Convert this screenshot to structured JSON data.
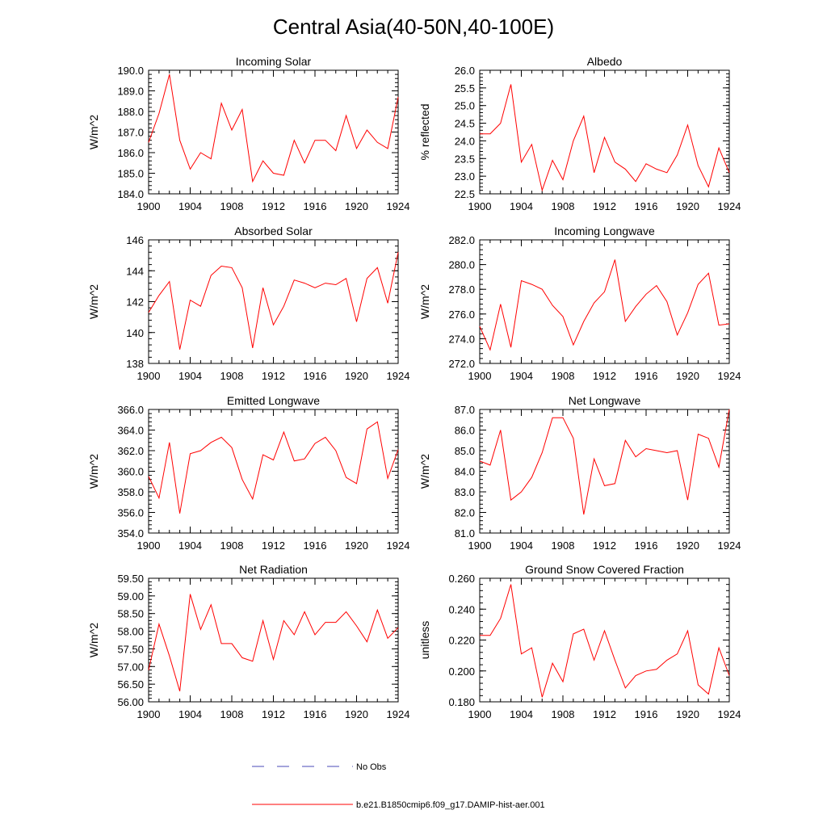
{
  "page": {
    "title": "Central Asia(40-50N,40-100E)"
  },
  "legend": {
    "entries": [
      {
        "label": "No Obs",
        "color": "#4a4ab8",
        "style": "dashed"
      },
      {
        "label": "b.e21.B1850cmip6.f09_g17.DAMIP-hist-aer.001",
        "color": "#ff0000",
        "style": "solid"
      }
    ]
  },
  "chart_data": [
    {
      "type": "line",
      "title": "Incoming Solar",
      "ylabel": "W/m^2",
      "xlim": [
        1900,
        1924
      ],
      "ylim": [
        184.0,
        190.0
      ],
      "xticks": [
        1900,
        1904,
        1908,
        1912,
        1916,
        1920,
        1924
      ],
      "yticks": [
        "184.0",
        "185.0",
        "186.0",
        "187.0",
        "188.0",
        "189.0",
        "190.0"
      ],
      "yminor": 0.2,
      "x": [
        1900,
        1901,
        1902,
        1903,
        1904,
        1905,
        1906,
        1907,
        1908,
        1909,
        1910,
        1911,
        1912,
        1913,
        1914,
        1915,
        1916,
        1917,
        1918,
        1919,
        1920,
        1921,
        1922,
        1923,
        1924
      ],
      "series": [
        {
          "color": "#ff0000",
          "values": [
            186.5,
            187.9,
            189.8,
            186.6,
            185.2,
            186.0,
            185.7,
            188.4,
            187.1,
            188.1,
            184.6,
            185.6,
            185.0,
            184.9,
            186.6,
            185.5,
            186.6,
            186.6,
            186.1,
            187.8,
            186.2,
            187.1,
            186.5,
            186.2,
            188.7
          ]
        }
      ]
    },
    {
      "type": "line",
      "title": "Albedo",
      "ylabel": "% reflected",
      "xlim": [
        1900,
        1924
      ],
      "ylim": [
        22.5,
        26.0
      ],
      "xticks": [
        1900,
        1904,
        1908,
        1912,
        1916,
        1920,
        1924
      ],
      "yticks": [
        "22.5",
        "23.0",
        "23.5",
        "24.0",
        "24.5",
        "25.0",
        "25.5",
        "26.0"
      ],
      "yminor": 0.1,
      "x": [
        1900,
        1901,
        1902,
        1903,
        1904,
        1905,
        1906,
        1907,
        1908,
        1909,
        1910,
        1911,
        1912,
        1913,
        1914,
        1915,
        1916,
        1917,
        1918,
        1919,
        1920,
        1921,
        1922,
        1923,
        1924
      ],
      "series": [
        {
          "color": "#ff0000",
          "values": [
            24.2,
            24.2,
            24.5,
            25.6,
            23.4,
            23.9,
            22.6,
            23.45,
            22.9,
            24.0,
            24.7,
            23.1,
            24.1,
            23.4,
            23.2,
            22.85,
            23.35,
            23.2,
            23.1,
            23.6,
            24.45,
            23.3,
            22.7,
            23.8,
            23.1
          ]
        }
      ]
    },
    {
      "type": "line",
      "title": "Absorbed Solar",
      "ylabel": "W/m^2",
      "xlim": [
        1900,
        1924
      ],
      "ylim": [
        138,
        146
      ],
      "xticks": [
        1900,
        1904,
        1908,
        1912,
        1916,
        1920,
        1924
      ],
      "yticks": [
        "138",
        "140",
        "142",
        "144",
        "146"
      ],
      "yminor": 0.4,
      "x": [
        1900,
        1901,
        1902,
        1903,
        1904,
        1905,
        1906,
        1907,
        1908,
        1909,
        1910,
        1911,
        1912,
        1913,
        1914,
        1915,
        1916,
        1917,
        1918,
        1919,
        1920,
        1921,
        1922,
        1923,
        1924
      ],
      "series": [
        {
          "color": "#ff0000",
          "values": [
            141.3,
            142.4,
            143.3,
            138.9,
            142.1,
            141.7,
            143.7,
            144.3,
            144.2,
            142.9,
            139.0,
            142.9,
            140.5,
            141.7,
            143.4,
            143.2,
            142.9,
            143.2,
            143.1,
            143.5,
            140.7,
            143.5,
            144.2,
            141.9,
            145.2
          ]
        }
      ]
    },
    {
      "type": "line",
      "title": "Incoming Longwave",
      "ylabel": "W/m^2",
      "xlim": [
        1900,
        1924
      ],
      "ylim": [
        272.0,
        282.0
      ],
      "xticks": [
        1900,
        1904,
        1908,
        1912,
        1916,
        1920,
        1924
      ],
      "yticks": [
        "272.0",
        "274.0",
        "276.0",
        "278.0",
        "280.0",
        "282.0"
      ],
      "yminor": 0.4,
      "x": [
        1900,
        1901,
        1902,
        1903,
        1904,
        1905,
        1906,
        1907,
        1908,
        1909,
        1910,
        1911,
        1912,
        1913,
        1914,
        1915,
        1916,
        1917,
        1918,
        1919,
        1920,
        1921,
        1922,
        1923,
        1924
      ],
      "series": [
        {
          "color": "#ff0000",
          "values": [
            275.0,
            273.1,
            276.8,
            273.3,
            278.7,
            278.4,
            278.0,
            276.7,
            275.8,
            273.5,
            275.4,
            276.9,
            277.8,
            280.4,
            275.4,
            276.6,
            277.6,
            278.3,
            277.0,
            274.3,
            276.1,
            278.4,
            279.3,
            275.1,
            275.2
          ]
        }
      ]
    },
    {
      "type": "line",
      "title": "Emitted Longwave",
      "ylabel": "W/m^2",
      "xlim": [
        1900,
        1924
      ],
      "ylim": [
        354.0,
        366.0
      ],
      "xticks": [
        1900,
        1904,
        1908,
        1912,
        1916,
        1920,
        1924
      ],
      "yticks": [
        "354.0",
        "356.0",
        "358.0",
        "360.0",
        "362.0",
        "364.0",
        "366.0"
      ],
      "yminor": 0.4,
      "x": [
        1900,
        1901,
        1902,
        1903,
        1904,
        1905,
        1906,
        1907,
        1908,
        1909,
        1910,
        1911,
        1912,
        1913,
        1914,
        1915,
        1916,
        1917,
        1918,
        1919,
        1920,
        1921,
        1922,
        1923,
        1924
      ],
      "series": [
        {
          "color": "#ff0000",
          "values": [
            359.5,
            357.4,
            362.8,
            355.9,
            361.7,
            362.0,
            362.8,
            363.3,
            362.3,
            359.2,
            357.3,
            361.6,
            361.1,
            363.8,
            361.0,
            361.2,
            362.7,
            363.3,
            362.0,
            359.4,
            358.8,
            364.1,
            364.8,
            359.3,
            362.1
          ]
        }
      ]
    },
    {
      "type": "line",
      "title": "Net Longwave",
      "ylabel": "W/m^2",
      "xlim": [
        1900,
        1924
      ],
      "ylim": [
        81.0,
        87.0
      ],
      "xticks": [
        1900,
        1904,
        1908,
        1912,
        1916,
        1920,
        1924
      ],
      "yticks": [
        "81.0",
        "82.0",
        "83.0",
        "84.0",
        "85.0",
        "86.0",
        "87.0"
      ],
      "yminor": 0.2,
      "x": [
        1900,
        1901,
        1902,
        1903,
        1904,
        1905,
        1906,
        1907,
        1908,
        1909,
        1910,
        1911,
        1912,
        1913,
        1914,
        1915,
        1916,
        1917,
        1918,
        1919,
        1920,
        1921,
        1922,
        1923,
        1924
      ],
      "series": [
        {
          "color": "#ff0000",
          "values": [
            84.5,
            84.3,
            86.0,
            82.6,
            83.0,
            83.7,
            84.9,
            86.6,
            86.6,
            85.6,
            81.9,
            84.6,
            83.3,
            83.4,
            85.5,
            84.7,
            85.1,
            85.0,
            84.9,
            85.0,
            82.6,
            85.8,
            85.6,
            84.2,
            87.0
          ]
        }
      ]
    },
    {
      "type": "line",
      "title": "Net Radiation",
      "ylabel": "W/m^2",
      "xlim": [
        1900,
        1924
      ],
      "ylim": [
        56.0,
        59.5
      ],
      "xticks": [
        1900,
        1904,
        1908,
        1912,
        1916,
        1920,
        1924
      ],
      "yticks": [
        "56.00",
        "56.50",
        "57.00",
        "57.50",
        "58.00",
        "58.50",
        "59.00",
        "59.50"
      ],
      "yminor": 0.1,
      "x": [
        1900,
        1901,
        1902,
        1903,
        1904,
        1905,
        1906,
        1907,
        1908,
        1909,
        1910,
        1911,
        1912,
        1913,
        1914,
        1915,
        1916,
        1917,
        1918,
        1919,
        1920,
        1921,
        1922,
        1923,
        1924
      ],
      "series": [
        {
          "color": "#ff0000",
          "values": [
            56.9,
            58.2,
            57.3,
            56.3,
            59.05,
            58.05,
            58.75,
            57.65,
            57.65,
            57.25,
            57.15,
            58.3,
            57.2,
            58.3,
            57.9,
            58.55,
            57.9,
            58.25,
            58.25,
            58.55,
            58.15,
            57.7,
            58.6,
            57.8,
            58.1
          ]
        }
      ]
    },
    {
      "type": "line",
      "title": "Ground Snow Covered Fraction",
      "ylabel": "unitless",
      "xlim": [
        1900,
        1924
      ],
      "ylim": [
        0.18,
        0.26
      ],
      "xticks": [
        1900,
        1904,
        1908,
        1912,
        1916,
        1920,
        1924
      ],
      "yticks": [
        "0.180",
        "0.200",
        "0.220",
        "0.240",
        "0.260"
      ],
      "yminor": 0.004,
      "x": [
        1900,
        1901,
        1902,
        1903,
        1904,
        1905,
        1906,
        1907,
        1908,
        1909,
        1910,
        1911,
        1912,
        1913,
        1914,
        1915,
        1916,
        1917,
        1918,
        1919,
        1920,
        1921,
        1922,
        1923,
        1924
      ],
      "series": [
        {
          "color": "#ff0000",
          "values": [
            0.223,
            0.223,
            0.234,
            0.256,
            0.211,
            0.215,
            0.183,
            0.205,
            0.193,
            0.224,
            0.227,
            0.207,
            0.226,
            0.207,
            0.189,
            0.197,
            0.2,
            0.201,
            0.207,
            0.211,
            0.226,
            0.191,
            0.185,
            0.215,
            0.197
          ]
        }
      ]
    }
  ]
}
